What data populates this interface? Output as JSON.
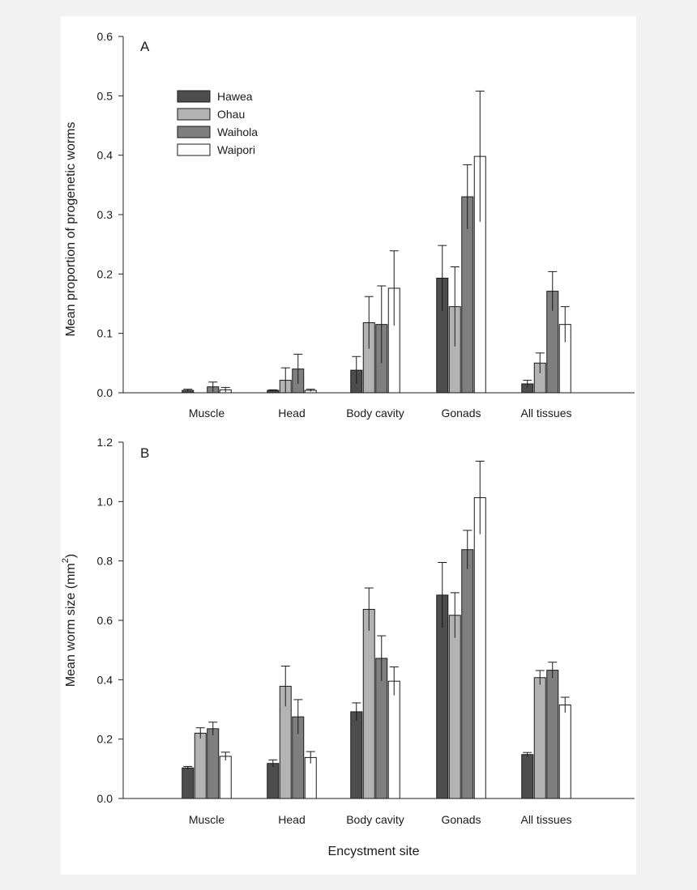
{
  "chart_data": [
    {
      "type": "bar",
      "panel_label": "A",
      "title": "",
      "xlabel": "",
      "ylabel": "Mean proportion of progenetic worms",
      "ylim": [
        0,
        0.6
      ],
      "yticks": [
        "0.0",
        "0.1",
        "0.2",
        "0.3",
        "0.4",
        "0.5",
        "0.6"
      ],
      "categories": [
        "Muscle",
        "Head",
        "Body cavity",
        "Gonads",
        "All tissues"
      ],
      "grid": false,
      "legend_position": "top-left",
      "series": [
        {
          "name": "Hawea",
          "color": "#4d4d4d",
          "values": [
            0.004,
            0.004,
            0.038,
            0.193,
            0.015
          ],
          "errors": [
            0.002,
            0.001,
            0.023,
            0.055,
            0.006
          ]
        },
        {
          "name": "Ohau",
          "color": "#b3b3b3",
          "values": [
            0.0,
            0.021,
            0.118,
            0.145,
            0.05
          ],
          "errors": [
            0.0,
            0.021,
            0.044,
            0.067,
            0.017
          ]
        },
        {
          "name": "Waihola",
          "color": "#7f7f7f",
          "values": [
            0.01,
            0.04,
            0.115,
            0.33,
            0.171
          ],
          "errors": [
            0.008,
            0.025,
            0.065,
            0.054,
            0.033
          ]
        },
        {
          "name": "Waipori",
          "color": "#ffffff",
          "values": [
            0.005,
            0.004,
            0.176,
            0.398,
            0.115
          ],
          "errors": [
            0.004,
            0.002,
            0.063,
            0.11,
            0.03
          ]
        }
      ]
    },
    {
      "type": "bar",
      "panel_label": "B",
      "title": "",
      "xlabel": "Encystment site",
      "ylabel": "Mean worm size (mm",
      "ylabel_superscript": "2",
      "ylabel_suffix": ")",
      "ylim": [
        0,
        1.2
      ],
      "yticks": [
        "0.0",
        "0.2",
        "0.4",
        "0.6",
        "0.8",
        "1.0",
        "1.2"
      ],
      "categories": [
        "Muscle",
        "Head",
        "Body cavity",
        "Gonads",
        "All tissues"
      ],
      "grid": false,
      "series": [
        {
          "name": "Hawea",
          "color": "#4d4d4d",
          "values": [
            0.103,
            0.118,
            0.292,
            0.685,
            0.148
          ],
          "errors": [
            0.005,
            0.012,
            0.03,
            0.11,
            0.007
          ]
        },
        {
          "name": "Ohau",
          "color": "#b3b3b3",
          "values": [
            0.22,
            0.378,
            0.637,
            0.617,
            0.407
          ],
          "errors": [
            0.018,
            0.068,
            0.072,
            0.076,
            0.024
          ]
        },
        {
          "name": "Waihola",
          "color": "#7f7f7f",
          "values": [
            0.235,
            0.275,
            0.472,
            0.838,
            0.432
          ],
          "errors": [
            0.022,
            0.058,
            0.076,
            0.065,
            0.027
          ]
        },
        {
          "name": "Waipori",
          "color": "#ffffff",
          "values": [
            0.142,
            0.138,
            0.395,
            1.013,
            0.315
          ],
          "errors": [
            0.014,
            0.02,
            0.048,
            0.123,
            0.026
          ]
        }
      ]
    }
  ]
}
